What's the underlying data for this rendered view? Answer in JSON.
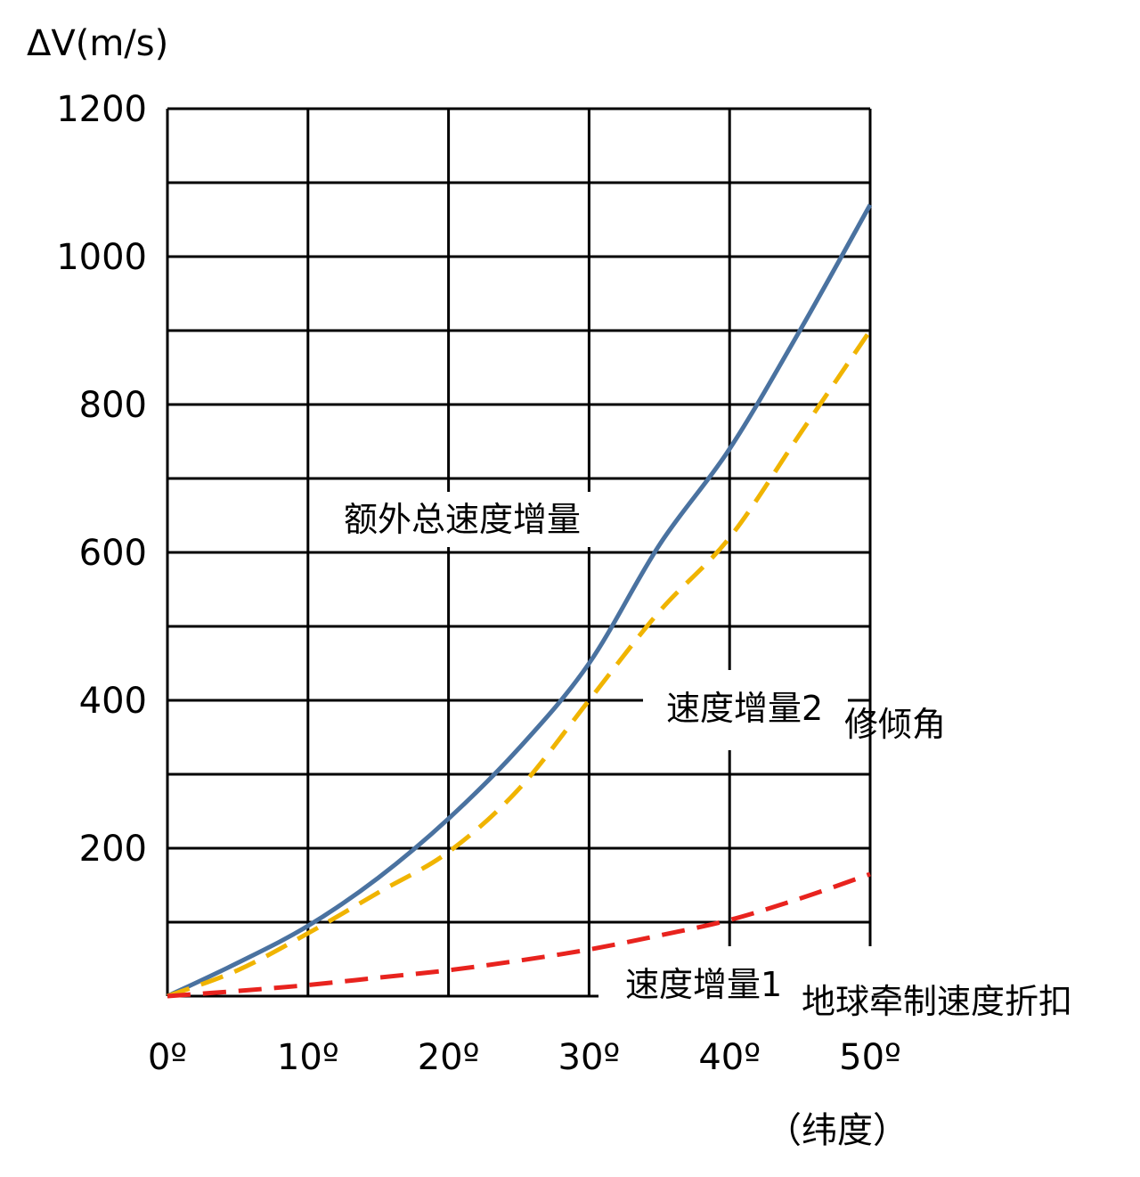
{
  "chart_data": {
    "type": "line",
    "ylabel": "ΔV(m/s)",
    "xlabel": "（纬度）",
    "x_ticks": [
      {
        "value": 0,
        "label": "0º"
      },
      {
        "value": 10,
        "label": "10º"
      },
      {
        "value": 20,
        "label": "20º"
      },
      {
        "value": 30,
        "label": "30º"
      },
      {
        "value": 40,
        "label": "40º"
      },
      {
        "value": 50,
        "label": "50º"
      }
    ],
    "y_ticks": [
      {
        "value": 200,
        "label": "200"
      },
      {
        "value": 400,
        "label": "400"
      },
      {
        "value": 600,
        "label": "600"
      },
      {
        "value": 800,
        "label": "800"
      },
      {
        "value": 1000,
        "label": "1000"
      },
      {
        "value": 1200,
        "label": "1200"
      }
    ],
    "xlim": [
      0,
      50
    ],
    "ylim": [
      0,
      1200
    ],
    "grid": {
      "x_step": 10,
      "y_step": 100
    },
    "series": [
      {
        "key": "total",
        "style": "solid",
        "color": "#4a72a0",
        "x": [
          0,
          5,
          10,
          15,
          20,
          25,
          30,
          35,
          40,
          45,
          50
        ],
        "values": [
          0,
          45,
          95,
          160,
          240,
          335,
          450,
          610,
          740,
          900,
          1070
        ]
      },
      {
        "key": "inclination",
        "style": "dashed",
        "color": "#f0b400",
        "x": [
          0,
          5,
          10,
          15,
          20,
          25,
          30,
          35,
          40,
          45,
          50
        ],
        "values": [
          0,
          35,
          85,
          140,
          195,
          280,
          400,
          520,
          620,
          760,
          900
        ]
      },
      {
        "key": "earth_rotation",
        "style": "dashed",
        "color": "#e8231e",
        "x": [
          0,
          5,
          10,
          15,
          20,
          25,
          30,
          35,
          40,
          45,
          50
        ],
        "values": [
          0,
          7,
          15,
          25,
          35,
          48,
          63,
          82,
          103,
          132,
          165
        ]
      }
    ],
    "annotations": [
      {
        "text": "额外总速度增量",
        "sub": ""
      },
      {
        "text": "速度增量2",
        "sub": "修倾角"
      },
      {
        "text": "速度增量1",
        "sub": "地球牵制速度折扣"
      }
    ]
  }
}
